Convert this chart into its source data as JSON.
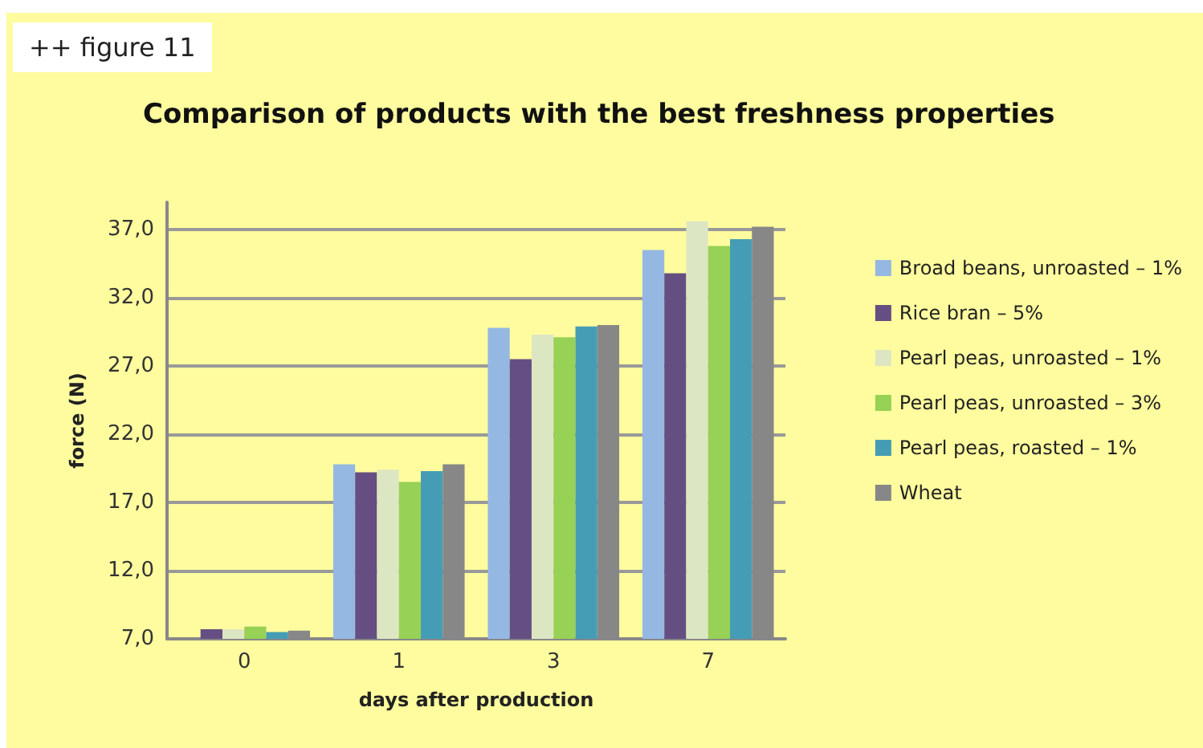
{
  "chart_data": {
    "type": "bar",
    "title": "Comparison of products with the best freshness properties",
    "xlabel": "days after production",
    "ylabel": "force (N)",
    "annotations": [
      "++ figure 11"
    ],
    "categories": [
      "0",
      "1",
      "3",
      "7"
    ],
    "series": [
      {
        "name": "Broad beans, unroasted – 1%",
        "color": "#95b8e3",
        "values": [
          7.0,
          19.8,
          29.8,
          35.5
        ]
      },
      {
        "name": "Rice bran – 5%",
        "color": "#654f82",
        "values": [
          7.7,
          19.2,
          27.5,
          33.8
        ]
      },
      {
        "name": "Pearl peas, unroasted – 1%",
        "color": "#dde6c3",
        "values": [
          7.7,
          19.4,
          29.3,
          37.6
        ]
      },
      {
        "name": "Pearl peas, unroasted – 3%",
        "color": "#97d155",
        "values": [
          7.9,
          18.5,
          29.1,
          35.8
        ]
      },
      {
        "name": "Pearl peas, roasted – 1%",
        "color": "#459db5",
        "values": [
          7.5,
          19.3,
          29.9,
          36.3
        ]
      },
      {
        "name": "Wheat",
        "color": "#878787",
        "values": [
          7.6,
          19.8,
          30.0,
          37.2
        ]
      }
    ],
    "ylim": [
      7,
      39
    ],
    "yticks": [
      {
        "value": 7,
        "label": "7,0"
      },
      {
        "value": 12,
        "label": "12,0"
      },
      {
        "value": 17,
        "label": "17,0"
      },
      {
        "value": 22,
        "label": "22,0"
      },
      {
        "value": 27,
        "label": "27,0"
      },
      {
        "value": 32,
        "label": "32,0"
      },
      {
        "value": 37,
        "label": "37,0"
      }
    ],
    "grid": "y",
    "legend": "right"
  }
}
